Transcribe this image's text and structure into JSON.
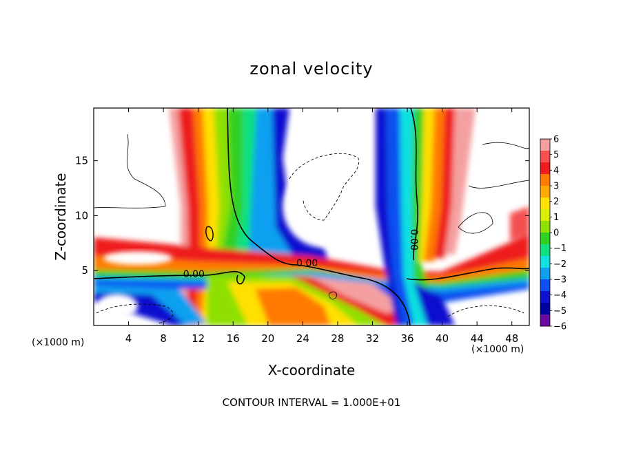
{
  "chart_data": {
    "type": "heatmap",
    "title": "zonal velocity",
    "xlabel": "X-coordinate",
    "ylabel": "Z-coordinate",
    "x_unit": "(×1000 m)",
    "xlim": [
      0,
      50
    ],
    "ylim": [
      0,
      19.8
    ],
    "x_ticks": [
      4,
      8,
      12,
      16,
      20,
      24,
      28,
      32,
      36,
      40,
      44,
      48
    ],
    "y_ticks": [
      5,
      10,
      15
    ],
    "contour_label": "0.00",
    "footer": "CONTOUR INTERVAL = 1.000E+01",
    "colorbar": {
      "levels": [
        6,
        5,
        4,
        3,
        2,
        1,
        0,
        -1,
        -2,
        -3,
        -4,
        -5,
        -6
      ],
      "colors": [
        "#f4a0a0",
        "#f45050",
        "#ee1c1c",
        "#ff7a00",
        "#ffaa00",
        "#ffe000",
        "#d8f000",
        "#8fe000",
        "#30d020",
        "#10e080",
        "#10e0e0",
        "#10a0f0",
        "#1050f0",
        "#1010d0",
        "#0000a0",
        "#6a0aa0"
      ]
    }
  }
}
